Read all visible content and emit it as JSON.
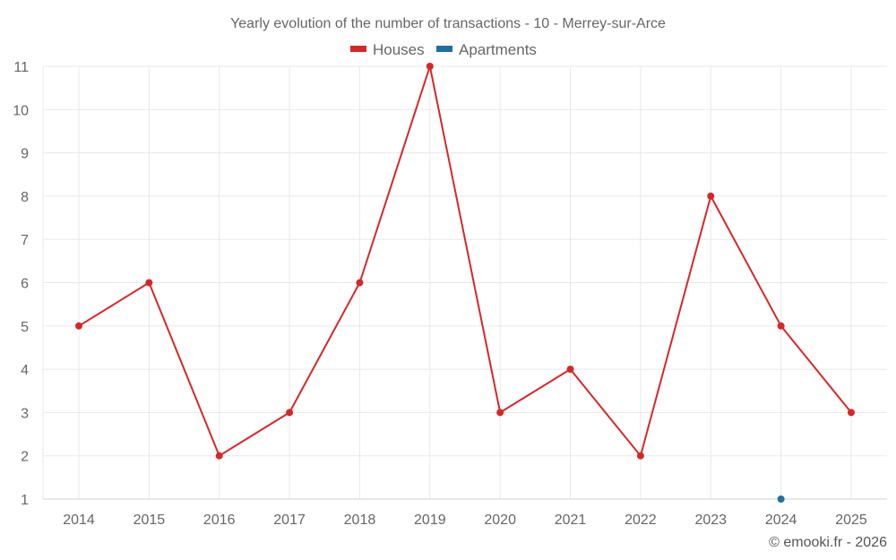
{
  "chart_data": {
    "type": "line",
    "title": "Yearly evolution of the number of transactions - 10 - Merrey-sur-Arce",
    "categories": [
      "2014",
      "2015",
      "2016",
      "2017",
      "2018",
      "2019",
      "2020",
      "2021",
      "2022",
      "2023",
      "2024",
      "2025"
    ],
    "y_ticks": [
      "1",
      "2",
      "3",
      "4",
      "5",
      "6",
      "7",
      "8",
      "9",
      "10",
      "11"
    ],
    "ylim": [
      1,
      11
    ],
    "grid": true,
    "legend_position": "top-center",
    "series": [
      {
        "name": "Houses",
        "color": "#d62728",
        "values": [
          5,
          6,
          2,
          3,
          6,
          11,
          3,
          4,
          2,
          8,
          5,
          3
        ]
      },
      {
        "name": "Apartments",
        "color": "#1f6fa0",
        "values": [
          null,
          null,
          null,
          null,
          null,
          null,
          null,
          null,
          null,
          null,
          1,
          null
        ]
      }
    ]
  },
  "credit": "© emooki.fr - 2026"
}
